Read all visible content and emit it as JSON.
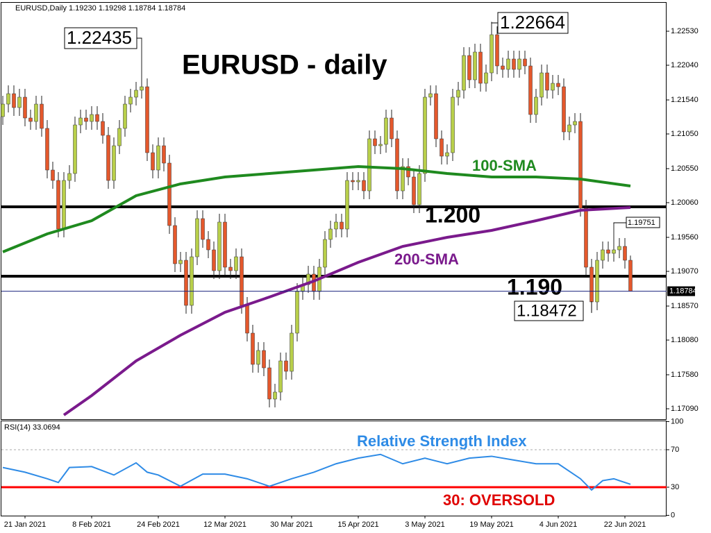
{
  "chart_data": [
    {
      "type": "candlestick",
      "title": "EURUSD,Daily  1.19230 1.19298 1.18784 1.18784",
      "annotation": "EURUSD - daily",
      "categories": [
        null,
        null,
        null,
        null,
        "21 Jan 2021",
        null,
        null,
        null,
        null,
        null,
        null,
        null,
        null,
        null,
        null,
        null,
        "8 Feb 2021",
        null,
        null,
        null,
        null,
        null,
        null,
        null,
        null,
        null,
        null,
        null,
        "24 Feb 2021",
        null,
        null,
        null,
        null,
        null,
        null,
        null,
        null,
        null,
        null,
        null,
        "12 Mar 2021",
        null,
        null,
        null,
        null,
        null,
        null,
        null,
        null,
        null,
        null,
        null,
        "30 Mar 2021",
        null,
        null,
        null,
        null,
        null,
        null,
        null,
        null,
        null,
        null,
        null,
        "15 Apr 2021",
        null,
        null,
        null,
        null,
        null,
        null,
        null,
        null,
        null,
        null,
        null,
        "3 May 2021",
        null,
        null,
        null,
        null,
        null,
        null,
        null,
        null,
        null,
        null,
        null,
        "19 May 2021",
        null,
        null,
        null,
        null,
        null,
        null,
        null,
        null,
        null,
        null,
        null,
        "4 Jun 2021",
        null,
        null,
        null,
        null,
        null,
        null,
        null,
        null,
        null,
        null,
        null,
        "22 Jun 2021",
        null
      ],
      "open": [
        1.213,
        1.2148,
        1.2163,
        1.2143,
        1.2158,
        1.2128,
        1.2123,
        1.2148,
        1.2113,
        1.2053,
        1.2038,
        1.1968,
        1.2038,
        1.2048,
        1.2118,
        1.2128,
        1.2123,
        1.2133,
        1.2123,
        1.2103,
        1.2038,
        1.2088,
        1.2113,
        1.2148,
        1.2158,
        1.2168,
        1.2173,
        1.2078,
        1.2053,
        1.2088,
        1.2063,
        1.1973,
        1.1918,
        1.1923,
        1.1858,
        1.1928,
        1.1983,
        1.1953,
        1.1938,
        1.1908,
        1.1978,
        1.1913,
        1.1908,
        1.1928,
        1.1858,
        1.1818,
        1.1773,
        1.1793,
        1.1768,
        1.1723,
        1.1733,
        1.1778,
        1.1763,
        1.1818,
        1.1878,
        1.1888,
        1.1903,
        1.1878,
        1.1913,
        1.1953,
        1.1968,
        1.1978,
        1.1968,
        1.2038,
        1.2036,
        1.2038,
        1.2023,
        1.2098,
        1.2088,
        1.209,
        1.2128,
        1.2098,
        1.2023,
        1.2058,
        1.2043,
        1.2003,
        1.2048,
        1.2158,
        1.2163,
        1.2098,
        1.2073,
        1.2078,
        1.2158,
        1.2168,
        1.2218,
        1.2183,
        1.2223,
        1.2178,
        1.2193,
        1.2248,
        1.2203,
        1.2198,
        1.2213,
        1.2198,
        1.2213,
        1.2203,
        1.2133,
        1.2158,
        1.2193,
        1.2168,
        1.2178,
        1.2173,
        1.2108,
        1.2118,
        1.2123,
        1.1998,
        1.1913,
        1.1863,
        1.1923,
        1.1938,
        1.1933,
        1.1938,
        1.1943,
        1.1923
      ],
      "high": [
        1.216,
        1.2175,
        1.2175,
        1.217,
        1.217,
        1.214,
        1.216,
        1.216,
        1.2125,
        1.2065,
        1.205,
        1.205,
        1.206,
        1.213,
        1.214,
        1.214,
        1.2145,
        1.2145,
        1.2135,
        1.2115,
        1.21,
        1.2125,
        1.216,
        1.217,
        1.218,
        1.22435,
        1.2185,
        1.209,
        1.21,
        1.21,
        1.2075,
        1.1985,
        1.1935,
        1.1935,
        1.194,
        1.1995,
        1.1995,
        1.1965,
        1.195,
        1.199,
        1.199,
        1.1925,
        1.194,
        1.194,
        1.187,
        1.183,
        1.1805,
        1.1805,
        1.178,
        1.1745,
        1.179,
        1.179,
        1.183,
        1.189,
        1.19,
        1.1915,
        1.1915,
        1.1925,
        1.1965,
        1.198,
        1.199,
        1.199,
        1.205,
        1.205,
        1.205,
        1.205,
        1.211,
        1.211,
        1.2102,
        1.214,
        1.214,
        1.211,
        1.207,
        1.207,
        1.2055,
        1.206,
        1.217,
        1.2175,
        1.2175,
        1.211,
        1.209,
        1.217,
        1.218,
        1.223,
        1.223,
        1.2235,
        1.2235,
        1.2205,
        1.22664,
        1.226,
        1.2215,
        1.2225,
        1.2225,
        1.2225,
        1.2225,
        1.2215,
        1.217,
        1.2205,
        1.2205,
        1.219,
        1.219,
        1.2185,
        1.213,
        1.2135,
        1.2135,
        1.201,
        1.1925,
        1.1935,
        1.195,
        1.195,
        1.19751,
        1.1955,
        1.1955,
        1.19298
      ],
      "low": [
        1.2118,
        1.2136,
        1.2131,
        1.2131,
        1.2116,
        1.2111,
        1.2111,
        1.2101,
        1.2041,
        1.2026,
        1.1956,
        1.1956,
        1.2026,
        1.2036,
        1.2106,
        1.2111,
        1.2111,
        1.2111,
        1.2091,
        1.2026,
        1.2026,
        1.2076,
        1.2101,
        1.2136,
        1.2146,
        1.2156,
        1.2066,
        1.2041,
        1.2041,
        1.2051,
        1.1961,
        1.1906,
        1.1906,
        1.1846,
        1.1846,
        1.1916,
        1.1941,
        1.1926,
        1.1896,
        1.1896,
        1.1901,
        1.1896,
        1.1896,
        1.1846,
        1.1806,
        1.1761,
        1.1761,
        1.1756,
        1.1711,
        1.1711,
        1.1721,
        1.1751,
        1.1751,
        1.1806,
        1.1866,
        1.1876,
        1.1866,
        1.1866,
        1.1901,
        1.1941,
        1.1956,
        1.1956,
        1.1956,
        1.2024,
        1.2024,
        1.2011,
        1.2011,
        1.2076,
        1.2076,
        1.2078,
        1.2086,
        1.2011,
        1.2011,
        1.2031,
        1.1991,
        1.1991,
        1.2036,
        1.2146,
        1.2086,
        1.2061,
        1.2061,
        1.2066,
        1.2146,
        1.2156,
        1.2171,
        1.2171,
        1.2166,
        1.2166,
        1.2181,
        1.2191,
        1.2186,
        1.2186,
        1.2186,
        1.2186,
        1.2191,
        1.2121,
        1.2121,
        1.2146,
        1.2156,
        1.2156,
        1.2161,
        1.2096,
        1.2096,
        1.2106,
        1.1986,
        1.1901,
        1.18472,
        1.1851,
        1.1911,
        1.1921,
        1.1921,
        1.1926,
        1.1911,
        1.18784
      ],
      "close": [
        1.2148,
        1.2163,
        1.2143,
        1.2158,
        1.2128,
        1.2123,
        1.2148,
        1.2113,
        1.2053,
        1.2038,
        1.1968,
        1.2038,
        1.2048,
        1.2118,
        1.2128,
        1.2123,
        1.2133,
        1.2123,
        1.2103,
        1.2038,
        1.2088,
        1.2113,
        1.2148,
        1.2158,
        1.2168,
        1.2173,
        1.2078,
        1.2053,
        1.2088,
        1.2063,
        1.1973,
        1.1918,
        1.1923,
        1.1858,
        1.1928,
        1.1983,
        1.1953,
        1.1938,
        1.1908,
        1.1978,
        1.1913,
        1.1908,
        1.1928,
        1.1858,
        1.1818,
        1.1773,
        1.1793,
        1.1768,
        1.1723,
        1.1733,
        1.1778,
        1.1763,
        1.1818,
        1.1878,
        1.1888,
        1.1903,
        1.1878,
        1.1913,
        1.1953,
        1.1968,
        1.1978,
        1.1968,
        1.2038,
        1.2036,
        1.2038,
        1.2023,
        1.2098,
        1.2088,
        1.209,
        1.2128,
        1.2098,
        1.2023,
        1.2058,
        1.2043,
        1.2003,
        1.2048,
        1.2158,
        1.2163,
        1.2098,
        1.2073,
        1.2078,
        1.2158,
        1.2168,
        1.2218,
        1.2183,
        1.2223,
        1.2178,
        1.2193,
        1.2248,
        1.2203,
        1.2198,
        1.2213,
        1.2198,
        1.2213,
        1.2203,
        1.2133,
        1.2158,
        1.2193,
        1.2168,
        1.2178,
        1.2173,
        1.2108,
        1.2118,
        1.2123,
        1.1998,
        1.1913,
        1.1863,
        1.1923,
        1.1938,
        1.1933,
        1.1938,
        1.1943,
        1.1923,
        1.18784
      ],
      "up_color": "#b8cf4a",
      "down_color": "#e4582c",
      "lines": [
        {
          "name": "100-SMA",
          "color": "#1f8a1f",
          "x": [
            0,
            8,
            16,
            24,
            32,
            40,
            48,
            56,
            64,
            72,
            80,
            88,
            96,
            104,
            113
          ],
          "values": [
            1.1935,
            1.1961,
            1.198,
            1.2016,
            1.2033,
            1.2043,
            1.2048,
            1.2053,
            1.2058,
            1.2055,
            1.2048,
            1.2043,
            1.2043,
            1.204,
            1.203
          ]
        },
        {
          "name": "200-SMA",
          "color": "#7a1a8c",
          "x": [
            11,
            16,
            24,
            32,
            40,
            48,
            56,
            64,
            72,
            80,
            88,
            96,
            104,
            113
          ],
          "values": [
            1.17,
            1.1728,
            1.1778,
            1.1815,
            1.1848,
            1.187,
            1.1893,
            1.192,
            1.1943,
            1.1956,
            1.1966,
            1.198,
            1.1995,
            1.1999
          ]
        }
      ],
      "levels": [
        {
          "value": 1.2,
          "label": "1.200"
        },
        {
          "value": 1.19,
          "label": "1.190"
        }
      ],
      "ylim": [
        1.1694,
        1.2293
      ],
      "yticks": [
        {
          "value": 1.1709,
          "label": "1.17090"
        },
        {
          "value": 1.1758,
          "label": "1.17580"
        },
        {
          "value": 1.1808,
          "label": "1.18080"
        },
        {
          "value": 1.1857,
          "label": "1.18570"
        },
        {
          "value": 1.1907,
          "label": "1.19070"
        },
        {
          "value": 1.1956,
          "label": "1.19560"
        },
        {
          "value": 1.2006,
          "label": "1.20060"
        },
        {
          "value": 1.2055,
          "label": "1.20550"
        },
        {
          "value": 1.2105,
          "label": "1.21050"
        },
        {
          "value": 1.2154,
          "label": "1.21540"
        },
        {
          "value": 1.2204,
          "label": "1.22040"
        },
        {
          "value": 1.2253,
          "label": "1.22530"
        }
      ]
    },
    {
      "type": "line",
      "title": "RSI(14) 33.0694",
      "name": "Relative Strength Index",
      "annotation": "30: OVERSOLD",
      "color": "#2e8be6",
      "x": [
        0,
        4,
        8,
        10,
        12,
        16,
        20,
        24,
        26,
        28,
        32,
        36,
        40,
        44,
        48,
        52,
        56,
        60,
        64,
        68,
        72,
        76,
        80,
        84,
        88,
        92,
        96,
        100,
        104,
        106,
        108,
        110,
        113
      ],
      "values": [
        51,
        46,
        39,
        35,
        51,
        52,
        43,
        56,
        46,
        43,
        31,
        44,
        44,
        39,
        31,
        39,
        46,
        55,
        61,
        65,
        55,
        61,
        55,
        61,
        63,
        59,
        55,
        55,
        39,
        27,
        37,
        39,
        33.0694
      ],
      "ylim": [
        0,
        100
      ],
      "yticks": [
        0,
        30,
        70,
        100
      ],
      "level_lines": [
        {
          "value": 70,
          "color": "#aaaaaa"
        },
        {
          "value": 30,
          "color": "#ff0000"
        }
      ]
    }
  ]
}
